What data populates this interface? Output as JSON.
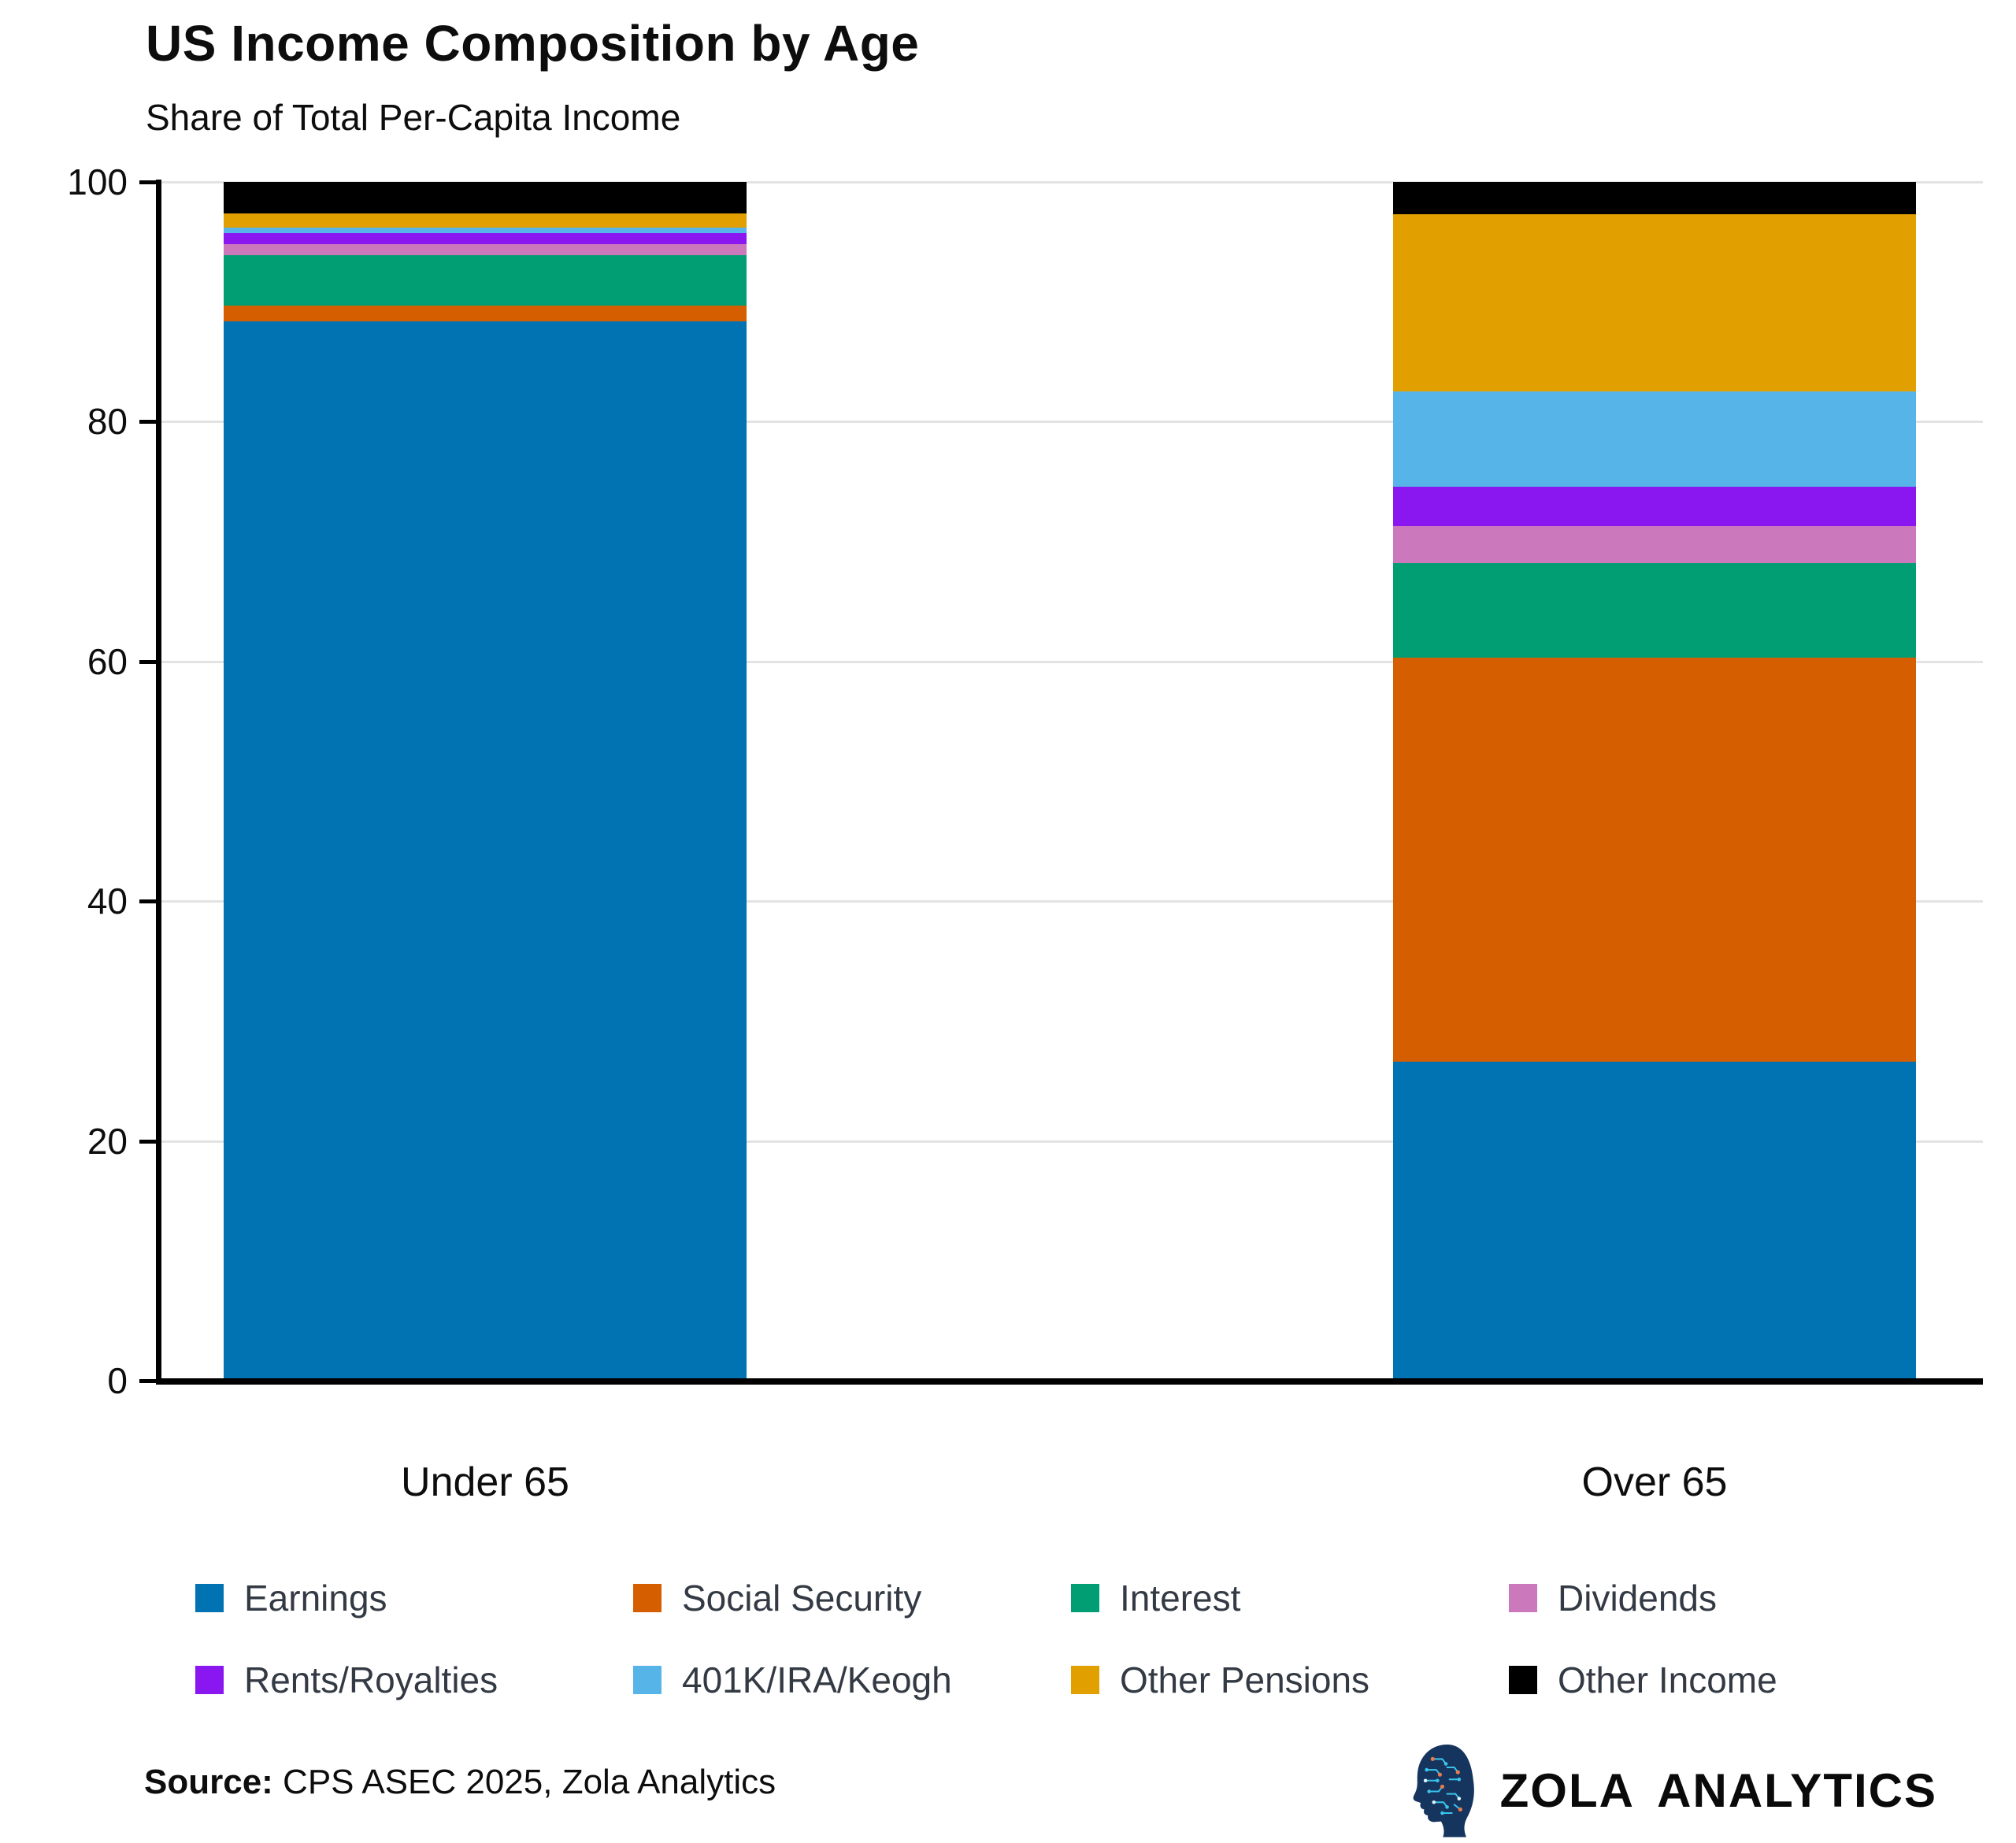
{
  "header": {
    "title": "US Income Composition by Age",
    "subtitle": "Share of Total Per-Capita Income"
  },
  "chart_data": {
    "type": "bar",
    "stacked": true,
    "title": "US Income Composition by Age",
    "subtitle": "Share of Total Per-Capita Income",
    "categories": [
      "Under 65",
      "Over 65"
    ],
    "series": [
      {
        "name": "Earnings",
        "color": "#0173b2",
        "values": [
          88.4,
          26.6
        ]
      },
      {
        "name": "Social Security",
        "color": "#d55e00",
        "values": [
          1.3,
          33.7
        ]
      },
      {
        "name": "Interest",
        "color": "#029e73",
        "values": [
          4.2,
          7.9
        ]
      },
      {
        "name": "Dividends",
        "color": "#cc78bc",
        "values": [
          0.9,
          3.1
        ]
      },
      {
        "name": "Rents/Royalties",
        "color": "#8a16f0",
        "values": [
          0.9,
          3.3
        ]
      },
      {
        "name": "401K/IRA/Keogh",
        "color": "#56b4e9",
        "values": [
          0.5,
          7.9
        ]
      },
      {
        "name": "Other Pensions",
        "color": "#e2a000",
        "values": [
          1.2,
          14.8
        ]
      },
      {
        "name": "Other Income",
        "color": "#000000",
        "values": [
          2.6,
          2.7
        ]
      }
    ],
    "ylim": [
      0,
      100
    ],
    "yticks": [
      0,
      20,
      40,
      60,
      80,
      100
    ],
    "grid": "horizontal-light-gray",
    "legend_position": "bottom"
  },
  "theme": {
    "grid_color": "#e3e3e3",
    "axis_color": "#000000",
    "legend_text_color": "#333a44",
    "logo_navy": "#16355e",
    "logo_cyan": "#3ac4ec",
    "logo_orange": "#e87a4e"
  },
  "footer": {
    "source_label": "Source:",
    "source_text": " CPS ASEC 2025, Zola Analytics"
  },
  "logo": {
    "icon": "brain-circuit-head-icon",
    "brand": "ZOLA ANALYTICS"
  }
}
